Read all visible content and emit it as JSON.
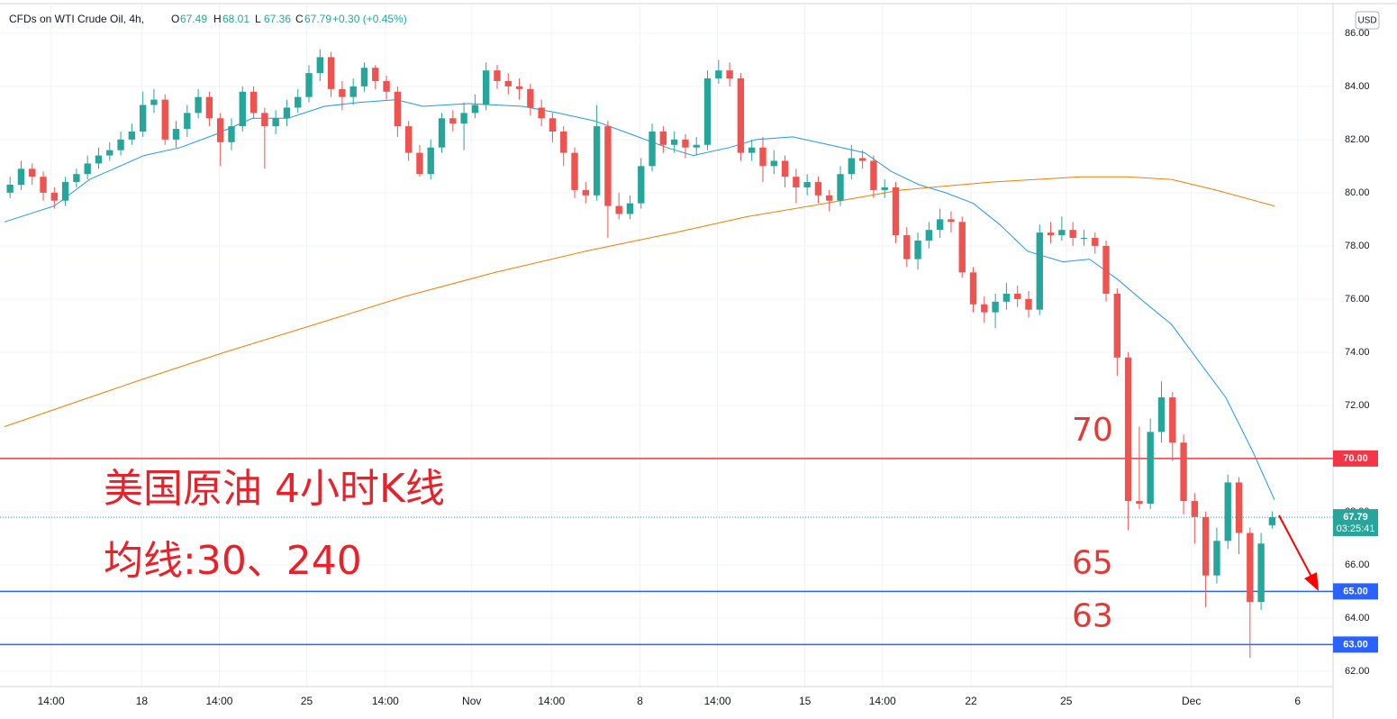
{
  "chart_data": {
    "type": "candlestick",
    "symbol": "CFDs on WTI Crude Oil, 4h,",
    "ohlc_labels": [
      "O",
      "H",
      "L",
      "C"
    ],
    "change": "+0.30 (+0.45%)",
    "countdown": "03:25:41",
    "currency": "USD",
    "annotations": [
      "美国原油 4小时K线",
      "均线:30、240"
    ],
    "up_color": "#26a69a",
    "down_color": "#ef5350",
    "candles": [
      [
        80.0,
        80.6,
        79.8,
        80.3
      ],
      [
        80.3,
        81.2,
        80.1,
        80.9
      ],
      [
        80.9,
        81.1,
        80.3,
        80.6
      ],
      [
        80.6,
        80.8,
        79.7,
        80.0
      ],
      [
        80.0,
        80.2,
        79.4,
        79.7
      ],
      [
        79.7,
        80.6,
        79.5,
        80.4
      ],
      [
        80.4,
        80.9,
        80.2,
        80.7
      ],
      [
        80.7,
        81.4,
        80.5,
        81.1
      ],
      [
        81.1,
        81.7,
        80.9,
        81.4
      ],
      [
        81.4,
        81.9,
        81.2,
        81.6
      ],
      [
        81.6,
        82.3,
        81.4,
        82.0
      ],
      [
        82.0,
        82.6,
        81.8,
        82.3
      ],
      [
        82.3,
        83.8,
        82.1,
        83.3
      ],
      [
        83.3,
        83.9,
        83.0,
        83.5
      ],
      [
        83.5,
        83.7,
        81.8,
        82.0
      ],
      [
        82.0,
        82.7,
        81.7,
        82.4
      ],
      [
        82.4,
        83.3,
        82.1,
        83.0
      ],
      [
        83.0,
        83.9,
        82.8,
        83.6
      ],
      [
        83.6,
        83.8,
        82.5,
        82.8
      ],
      [
        82.8,
        83.0,
        81.0,
        81.9
      ],
      [
        81.9,
        82.8,
        81.6,
        82.5
      ],
      [
        82.5,
        84.0,
        82.3,
        83.8
      ],
      [
        83.8,
        84.0,
        82.8,
        83.0
      ],
      [
        83.0,
        83.2,
        80.9,
        82.5
      ],
      [
        82.5,
        83.1,
        82.2,
        82.8
      ],
      [
        82.8,
        83.5,
        82.5,
        83.2
      ],
      [
        83.2,
        83.9,
        83.0,
        83.6
      ],
      [
        83.6,
        84.8,
        83.4,
        84.5
      ],
      [
        84.5,
        85.4,
        84.2,
        85.1
      ],
      [
        85.1,
        85.3,
        83.6,
        83.9
      ],
      [
        83.9,
        84.2,
        83.1,
        83.6
      ],
      [
        83.6,
        84.3,
        83.3,
        84.0
      ],
      [
        84.0,
        84.9,
        83.8,
        84.7
      ],
      [
        84.7,
        84.8,
        83.9,
        84.2
      ],
      [
        84.2,
        84.4,
        83.5,
        83.8
      ],
      [
        83.8,
        84.0,
        82.1,
        82.5
      ],
      [
        82.5,
        82.7,
        81.2,
        81.5
      ],
      [
        81.5,
        81.8,
        80.6,
        80.7
      ],
      [
        80.7,
        82.0,
        80.5,
        81.7
      ],
      [
        81.7,
        83.0,
        81.5,
        82.8
      ],
      [
        82.8,
        83.1,
        82.3,
        82.6
      ],
      [
        82.6,
        83.4,
        81.6,
        83.0
      ],
      [
        83.0,
        83.7,
        82.8,
        83.3
      ],
      [
        83.3,
        84.9,
        83.1,
        84.6
      ],
      [
        84.6,
        84.8,
        83.9,
        84.2
      ],
      [
        84.2,
        84.5,
        83.7,
        84.0
      ],
      [
        84.0,
        84.3,
        83.5,
        83.9
      ],
      [
        83.9,
        84.1,
        82.9,
        83.2
      ],
      [
        83.2,
        83.5,
        82.5,
        82.8
      ],
      [
        82.8,
        83.0,
        81.9,
        82.3
      ],
      [
        82.3,
        82.5,
        81.0,
        81.5
      ],
      [
        81.5,
        81.7,
        79.8,
        80.1
      ],
      [
        80.1,
        80.4,
        79.6,
        79.9
      ],
      [
        79.9,
        83.3,
        79.7,
        82.5
      ],
      [
        82.5,
        82.7,
        78.3,
        79.5
      ],
      [
        79.5,
        80.0,
        79.0,
        79.2
      ],
      [
        79.2,
        79.9,
        79.0,
        79.6
      ],
      [
        79.6,
        81.3,
        79.4,
        81.0
      ],
      [
        81.0,
        82.6,
        80.8,
        82.3
      ],
      [
        82.3,
        82.5,
        81.5,
        81.8
      ],
      [
        81.8,
        82.3,
        81.5,
        82.0
      ],
      [
        82.0,
        82.2,
        81.3,
        81.7
      ],
      [
        81.7,
        82.1,
        81.4,
        81.8
      ],
      [
        81.8,
        84.6,
        81.6,
        84.3
      ],
      [
        84.3,
        85.0,
        84.1,
        84.6
      ],
      [
        84.6,
        84.9,
        84.0,
        84.3
      ],
      [
        84.3,
        84.5,
        81.2,
        81.5
      ],
      [
        81.5,
        82.0,
        81.2,
        81.7
      ],
      [
        81.7,
        82.1,
        80.4,
        81.0
      ],
      [
        81.0,
        81.6,
        80.7,
        81.2
      ],
      [
        81.2,
        81.4,
        80.2,
        80.6
      ],
      [
        80.6,
        80.9,
        79.6,
        80.2
      ],
      [
        80.2,
        80.7,
        79.9,
        80.4
      ],
      [
        80.4,
        80.6,
        79.6,
        79.9
      ],
      [
        79.9,
        80.1,
        79.3,
        79.7
      ],
      [
        79.7,
        81.0,
        79.5,
        80.7
      ],
      [
        80.7,
        81.8,
        80.5,
        81.3
      ],
      [
        81.3,
        81.6,
        80.9,
        81.2
      ],
      [
        81.2,
        81.4,
        79.8,
        80.1
      ],
      [
        80.1,
        80.5,
        79.8,
        80.2
      ],
      [
        80.2,
        80.4,
        78.1,
        78.4
      ],
      [
        78.4,
        78.7,
        77.2,
        77.5
      ],
      [
        77.5,
        78.5,
        77.1,
        78.2
      ],
      [
        78.2,
        78.9,
        77.9,
        78.6
      ],
      [
        78.6,
        79.4,
        78.3,
        79.0
      ],
      [
        79.0,
        79.3,
        78.5,
        78.9
      ],
      [
        78.9,
        79.1,
        76.8,
        77.0
      ],
      [
        77.0,
        77.2,
        75.5,
        75.8
      ],
      [
        75.8,
        76.1,
        75.1,
        75.5
      ],
      [
        75.5,
        76.2,
        74.9,
        75.9
      ],
      [
        75.9,
        76.6,
        75.6,
        76.2
      ],
      [
        76.2,
        76.5,
        75.7,
        76.0
      ],
      [
        76.0,
        76.3,
        75.3,
        75.6
      ],
      [
        75.6,
        78.8,
        75.4,
        78.5
      ],
      [
        78.5,
        78.9,
        78.1,
        78.4
      ],
      [
        78.4,
        79.1,
        78.2,
        78.6
      ],
      [
        78.6,
        78.9,
        78.0,
        78.3
      ],
      [
        78.3,
        78.6,
        78.0,
        78.3
      ],
      [
        78.3,
        78.5,
        77.7,
        78.0
      ],
      [
        78.0,
        78.2,
        75.9,
        76.2
      ],
      [
        76.2,
        76.4,
        73.1,
        73.8
      ],
      [
        73.8,
        74.0,
        67.3,
        68.4
      ],
      [
        68.4,
        71.2,
        68.1,
        68.3
      ],
      [
        68.3,
        71.5,
        68.1,
        71.0
      ],
      [
        71.0,
        72.9,
        70.6,
        72.3
      ],
      [
        72.3,
        72.5,
        69.9,
        70.6
      ],
      [
        70.6,
        70.9,
        67.9,
        68.4
      ],
      [
        68.4,
        68.7,
        66.8,
        67.8
      ],
      [
        67.8,
        68.0,
        64.4,
        65.6
      ],
      [
        65.6,
        67.4,
        65.3,
        66.9
      ],
      [
        66.9,
        69.4,
        66.6,
        69.1
      ],
      [
        69.1,
        69.3,
        66.4,
        67.2
      ],
      [
        67.2,
        67.4,
        62.5,
        64.6
      ],
      [
        64.6,
        67.2,
        64.3,
        66.8
      ],
      [
        67.49,
        68.01,
        67.36,
        67.79
      ]
    ],
    "moving_averages": [
      {
        "color": "#2196f3",
        "x": [
          0,
          4.5,
          7.7,
          12.6,
          15.9,
          19.1,
          22.4,
          25.6,
          28.9,
          32.1,
          35.4,
          37.8,
          41.9,
          46.8,
          50.0,
          53.3,
          56.6,
          59.8,
          62.2,
          65.5,
          67.9,
          71.2,
          74.5,
          77.7,
          80.1,
          82.6,
          85.0,
          87.5,
          89.9,
          92.4,
          95.6,
          98.0,
          100.5,
          102.9,
          105.4,
          107.8,
          110.3,
          112.7,
          114.7
        ],
        "values": [
          78.9,
          79.5,
          80.5,
          81.4,
          81.7,
          82.2,
          82.8,
          82.8,
          83.25,
          83.4,
          83.5,
          83.25,
          83.35,
          83.25,
          83.0,
          82.7,
          82.2,
          81.7,
          81.4,
          81.7,
          82.0,
          82.1,
          81.8,
          81.5,
          80.8,
          80.3,
          80.0,
          79.6,
          78.8,
          77.8,
          77.4,
          77.5,
          76.75,
          75.9,
          75.05,
          73.7,
          72.3,
          70.3,
          68.45
        ]
      },
      {
        "color": "#f57c00",
        "x": [
          0,
          7.7,
          12.6,
          19.9,
          28.1,
          36.2,
          44.3,
          52.5,
          60.6,
          67.1,
          72.8,
          81.0,
          89.1,
          97.2,
          101.3,
          105.4,
          109.4,
          114.7
        ],
        "values": [
          71.2,
          72.3,
          73.0,
          74.0,
          75.05,
          76.1,
          77.0,
          77.8,
          78.5,
          79.1,
          79.5,
          80.1,
          80.4,
          80.6,
          80.6,
          80.5,
          80.1,
          79.5
        ]
      }
    ],
    "levels": [
      {
        "value": 70,
        "label": "70.00",
        "color": "#f23645"
      },
      {
        "value": 65,
        "label": "65.00",
        "color": "#2962ff"
      },
      {
        "value": 63,
        "label": "63.00",
        "color": "#2962ff"
      }
    ],
    "xlim": [
      0,
      120
    ],
    "xticks": [
      {
        "value": 4.2,
        "label": "14:00"
      },
      {
        "value": 12.4,
        "label": "18"
      },
      {
        "value": 19.4,
        "label": "14:00"
      },
      {
        "value": 27.3,
        "label": "25"
      },
      {
        "value": 34.4,
        "label": "14:00"
      },
      {
        "value": 42.2,
        "label": "Nov"
      },
      {
        "value": 49.4,
        "label": "14:00"
      },
      {
        "value": 57.4,
        "label": "8"
      },
      {
        "value": 64.4,
        "label": "14:00"
      },
      {
        "value": 72.3,
        "label": "15"
      },
      {
        "value": 79.3,
        "label": "14:00"
      },
      {
        "value": 87.3,
        "label": "22"
      },
      {
        "value": 95.9,
        "label": "25"
      },
      {
        "value": 107.2,
        "label": "Dec"
      },
      {
        "value": 116.8,
        "label": "6"
      }
    ],
    "ylim": [
      61.42,
      87.08
    ],
    "yticks": [
      {
        "value": 62,
        "label": "62.00"
      },
      {
        "value": 64,
        "label": "64.00"
      },
      {
        "value": 66,
        "label": "66.00"
      },
      {
        "value": 68,
        "label": "68.00"
      },
      {
        "value": 70,
        "label": "70.00"
      },
      {
        "value": 72,
        "label": "72.00"
      },
      {
        "value": 74,
        "label": "74.00"
      },
      {
        "value": 76,
        "label": "76.00"
      },
      {
        "value": 78,
        "label": "78.00"
      },
      {
        "value": 80,
        "label": "80.00"
      },
      {
        "value": 82,
        "label": "82.00"
      },
      {
        "value": 84,
        "label": "84.00"
      },
      {
        "value": 86,
        "label": "86.00"
      }
    ],
    "grid": true
  }
}
